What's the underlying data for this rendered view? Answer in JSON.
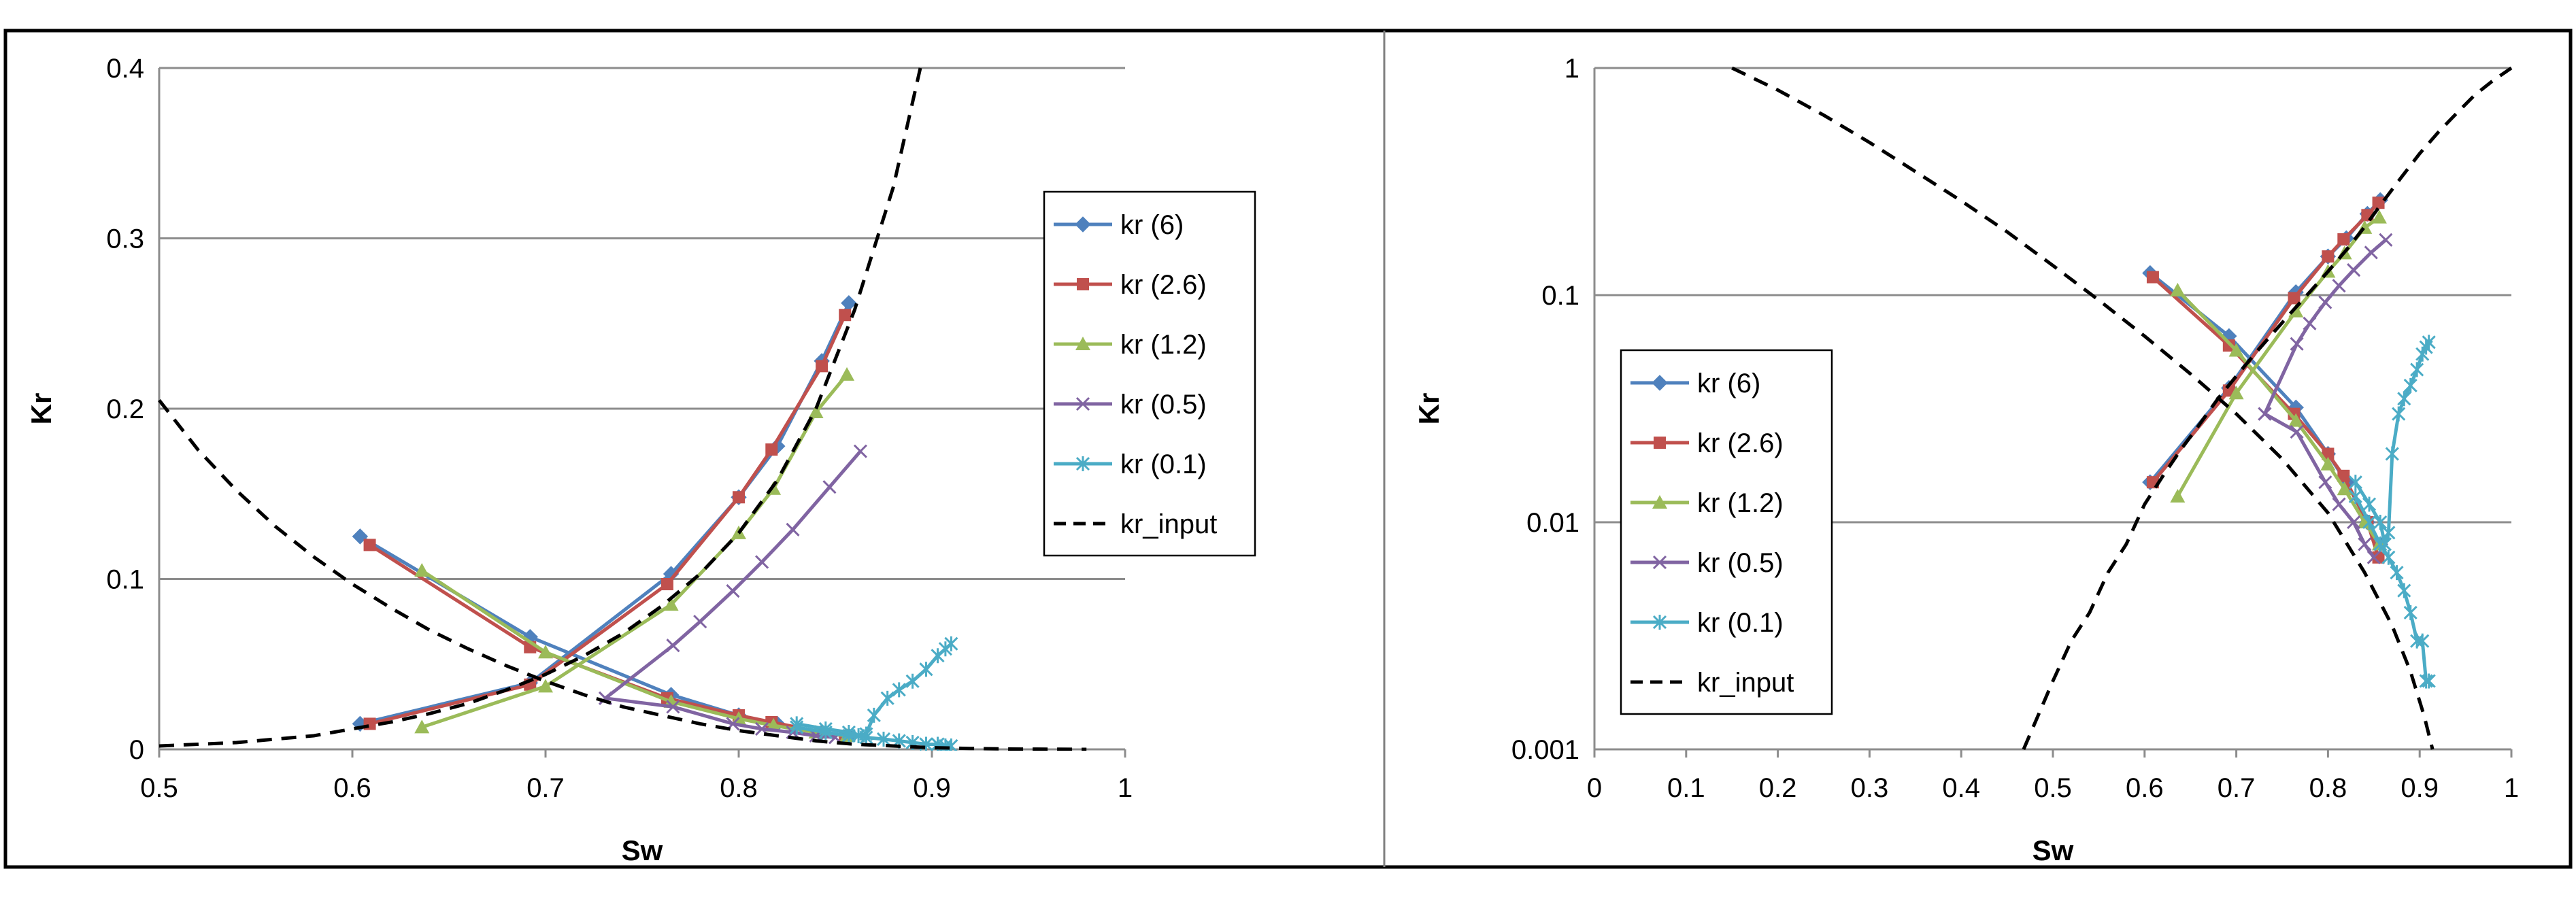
{
  "chart_data": [
    {
      "type": "line",
      "title": "",
      "xlabel": "Sw",
      "ylabel": "Kr",
      "xlim": [
        0.5,
        1
      ],
      "ylim": [
        0,
        0.4
      ],
      "yscale": "linear",
      "grid": true,
      "legend_position": "right",
      "xticks": [
        "0.5",
        "0.6",
        "0.7",
        "0.8",
        "0.9",
        "1"
      ],
      "yticks": [
        "0",
        "0.1",
        "0.2",
        "0.3",
        "0.4"
      ],
      "series": [
        {
          "name": "kr (6)",
          "color": "#4f81bd",
          "marker": "diamond",
          "segments": [
            {
              "x": [
                0.604,
                0.692,
                0.765,
                0.8,
                0.82,
                0.843,
                0.857
              ],
              "y": [
                0.015,
                0.039,
                0.103,
                0.148,
                0.178,
                0.228,
                0.262
              ]
            },
            {
              "x": [
                0.604,
                0.692,
                0.765,
                0.8,
                0.82,
                0.843,
                0.857
              ],
              "y": [
                0.125,
                0.066,
                0.032,
                0.02,
                0.015,
                0.01,
                0.008
              ]
            }
          ]
        },
        {
          "name": "kr (2.6)",
          "color": "#c0504d",
          "marker": "square",
          "segments": [
            {
              "x": [
                0.609,
                0.692,
                0.763,
                0.8,
                0.817,
                0.843,
                0.855
              ],
              "y": [
                0.015,
                0.038,
                0.097,
                0.148,
                0.176,
                0.225,
                0.255
              ]
            },
            {
              "x": [
                0.609,
                0.692,
                0.763,
                0.8,
                0.817,
                0.843,
                0.855
              ],
              "y": [
                0.12,
                0.06,
                0.03,
                0.02,
                0.016,
                0.01,
                0.008
              ]
            }
          ]
        },
        {
          "name": "kr (1.2)",
          "color": "#9bbb59",
          "marker": "triangle",
          "segments": [
            {
              "x": [
                0.636,
                0.7,
                0.765,
                0.8,
                0.818,
                0.84,
                0.856
              ],
              "y": [
                0.013,
                0.037,
                0.085,
                0.127,
                0.153,
                0.198,
                0.22
              ]
            },
            {
              "x": [
                0.636,
                0.7,
                0.765,
                0.8,
                0.818,
                0.84,
                0.856
              ],
              "y": [
                0.105,
                0.057,
                0.028,
                0.018,
                0.014,
                0.01,
                0.008
              ]
            }
          ]
        },
        {
          "name": "kr (0.5)",
          "color": "#8064a2",
          "marker": "x",
          "segments": [
            {
              "x": [
                0.731,
                0.766,
                0.78,
                0.797,
                0.812,
                0.828,
                0.847,
                0.863
              ],
              "y": [
                0.03,
                0.061,
                0.075,
                0.093,
                0.11,
                0.129,
                0.154,
                0.175
              ]
            },
            {
              "x": [
                0.731,
                0.766,
                0.797,
                0.812,
                0.828,
                0.84,
                0.85
              ],
              "y": [
                0.03,
                0.025,
                0.015,
                0.012,
                0.01,
                0.008,
                0.007
              ]
            }
          ]
        },
        {
          "name": "kr (0.1)",
          "color": "#4bacc6",
          "marker": "asterisk",
          "segments": [
            {
              "x": [
                0.83,
                0.845,
                0.857,
                0.862,
                0.866,
                0.87,
                0.877,
                0.883,
                0.89,
                0.897,
                0.903,
                0.907,
                0.91
              ],
              "y": [
                0.015,
                0.012,
                0.01,
                0.008,
                0.009,
                0.02,
                0.03,
                0.035,
                0.04,
                0.047,
                0.055,
                0.059,
                0.062
              ]
            },
            {
              "x": [
                0.83,
                0.845,
                0.857,
                0.866,
                0.875,
                0.883,
                0.89,
                0.897,
                0.903,
                0.907,
                0.91
              ],
              "y": [
                0.013,
                0.01,
                0.008,
                0.007,
                0.006,
                0.005,
                0.004,
                0.003,
                0.003,
                0.002,
                0.002
              ]
            }
          ]
        },
        {
          "name": "kr_input",
          "color": "#000000",
          "marker": "none",
          "dashed": true,
          "segments": [
            {
              "x": [
                0.5,
                0.52,
                0.54,
                0.56,
                0.58,
                0.6,
                0.62,
                0.64,
                0.66,
                0.68,
                0.7,
                0.72,
                0.74,
                0.76,
                0.78,
                0.8,
                0.82,
                0.84,
                0.86,
                0.88,
                0.894
              ],
              "y": [
                0.002,
                0.003,
                0.004,
                0.006,
                0.008,
                0.012,
                0.016,
                0.021,
                0.027,
                0.035,
                0.044,
                0.055,
                0.068,
                0.084,
                0.103,
                0.127,
                0.158,
                0.2,
                0.258,
                0.33,
                0.4
              ]
            },
            {
              "x": [
                0.5,
                0.52,
                0.54,
                0.56,
                0.58,
                0.6,
                0.62,
                0.64,
                0.66,
                0.68,
                0.7,
                0.72,
                0.74,
                0.76,
                0.78,
                0.8,
                0.82,
                0.84,
                0.86,
                0.88,
                0.9,
                0.92,
                0.94,
                0.96,
                0.98
              ],
              "y": [
                0.205,
                0.176,
                0.152,
                0.131,
                0.113,
                0.097,
                0.083,
                0.07,
                0.059,
                0.049,
                0.04,
                0.032,
                0.025,
                0.02,
                0.015,
                0.011,
                0.008,
                0.005,
                0.003,
                0.002,
                0.001,
                0.0005,
                0.0002,
                0.0001,
                0.0
              ]
            }
          ]
        }
      ]
    },
    {
      "type": "line",
      "title": "",
      "xlabel": "Sw",
      "ylabel": "Kr",
      "xlim": [
        0,
        1
      ],
      "ylim": [
        0.001,
        1
      ],
      "yscale": "log",
      "grid": true,
      "legend_position": "left",
      "xticks": [
        "0",
        "0.1",
        "0.2",
        "0.3",
        "0.4",
        "0.5",
        "0.6",
        "0.7",
        "0.8",
        "0.9",
        "1"
      ],
      "yticks": [
        "0.001",
        "0.01",
        "0.1",
        "1"
      ],
      "series": [
        {
          "name": "kr (6)",
          "color": "#4f81bd",
          "marker": "diamond",
          "segments": [
            {
              "x": [
                0.606,
                0.692,
                0.765,
                0.8,
                0.82,
                0.843,
                0.857
              ],
              "y": [
                0.015,
                0.039,
                0.103,
                0.148,
                0.178,
                0.228,
                0.262
              ]
            },
            {
              "x": [
                0.606,
                0.692,
                0.765,
                0.8,
                0.82,
                0.843,
                0.857
              ],
              "y": [
                0.125,
                0.066,
                0.032,
                0.02,
                0.015,
                0.01,
                0.008
              ]
            }
          ]
        },
        {
          "name": "kr (2.6)",
          "color": "#c0504d",
          "marker": "square",
          "segments": [
            {
              "x": [
                0.609,
                0.692,
                0.763,
                0.8,
                0.817,
                0.843,
                0.855
              ],
              "y": [
                0.015,
                0.038,
                0.097,
                0.148,
                0.176,
                0.225,
                0.255
              ]
            },
            {
              "x": [
                0.609,
                0.692,
                0.763,
                0.8,
                0.817,
                0.843,
                0.855
              ],
              "y": [
                0.12,
                0.06,
                0.03,
                0.02,
                0.016,
                0.01,
                0.007
              ]
            }
          ]
        },
        {
          "name": "kr (1.2)",
          "color": "#9bbb59",
          "marker": "triangle",
          "segments": [
            {
              "x": [
                0.636,
                0.7,
                0.765,
                0.8,
                0.818,
                0.84,
                0.856
              ],
              "y": [
                0.013,
                0.037,
                0.085,
                0.127,
                0.153,
                0.198,
                0.22
              ]
            },
            {
              "x": [
                0.636,
                0.7,
                0.765,
                0.8,
                0.818,
                0.84,
                0.856
              ],
              "y": [
                0.105,
                0.057,
                0.028,
                0.018,
                0.014,
                0.01,
                0.008
              ]
            }
          ]
        },
        {
          "name": "kr (0.5)",
          "color": "#8064a2",
          "marker": "x",
          "segments": [
            {
              "x": [
                0.731,
                0.766,
                0.78,
                0.797,
                0.812,
                0.828,
                0.847,
                0.863
              ],
              "y": [
                0.03,
                0.061,
                0.075,
                0.093,
                0.11,
                0.129,
                0.154,
                0.175
              ]
            },
            {
              "x": [
                0.731,
                0.766,
                0.797,
                0.812,
                0.828,
                0.84,
                0.85
              ],
              "y": [
                0.03,
                0.025,
                0.015,
                0.012,
                0.01,
                0.008,
                0.007
              ]
            }
          ]
        },
        {
          "name": "kr (0.1)",
          "color": "#4bacc6",
          "marker": "asterisk",
          "segments": [
            {
              "x": [
                0.83,
                0.845,
                0.857,
                0.862,
                0.866,
                0.87,
                0.877,
                0.883,
                0.89,
                0.897,
                0.903,
                0.907,
                0.91
              ],
              "y": [
                0.015,
                0.012,
                0.01,
                0.008,
                0.009,
                0.02,
                0.03,
                0.035,
                0.04,
                0.047,
                0.055,
                0.059,
                0.062
              ]
            },
            {
              "x": [
                0.83,
                0.845,
                0.857,
                0.866,
                0.875,
                0.883,
                0.89,
                0.897,
                0.903,
                0.907,
                0.91
              ],
              "y": [
                0.013,
                0.01,
                0.008,
                0.007,
                0.006,
                0.005,
                0.004,
                0.003,
                0.003,
                0.002,
                0.002
              ]
            }
          ]
        },
        {
          "name": "kr_input",
          "color": "#000000",
          "marker": "none",
          "dashed": true,
          "segments": [
            {
              "x": [
                0.468,
                0.5,
                0.52,
                0.54,
                0.56,
                0.58,
                0.6,
                0.62,
                0.64,
                0.66,
                0.68,
                0.7,
                0.72,
                0.74,
                0.76,
                0.78,
                0.8,
                0.82,
                0.84,
                0.86,
                0.88,
                0.9,
                0.92,
                0.94,
                0.96,
                0.98,
                1.0
              ],
              "y": [
                0.001,
                0.002,
                0.003,
                0.004,
                0.006,
                0.008,
                0.012,
                0.016,
                0.021,
                0.027,
                0.035,
                0.044,
                0.055,
                0.068,
                0.084,
                0.103,
                0.127,
                0.158,
                0.2,
                0.258,
                0.33,
                0.42,
                0.52,
                0.63,
                0.76,
                0.88,
                1.0
              ]
            },
            {
              "x": [
                0.15,
                0.2,
                0.25,
                0.3,
                0.35,
                0.4,
                0.45,
                0.5,
                0.55,
                0.6,
                0.65,
                0.7,
                0.75,
                0.8,
                0.84,
                0.87,
                0.89,
                0.905,
                0.914
              ],
              "y": [
                1.0,
                0.8,
                0.62,
                0.47,
                0.35,
                0.26,
                0.19,
                0.135,
                0.095,
                0.066,
                0.045,
                0.03,
                0.019,
                0.011,
                0.006,
                0.0035,
                0.0022,
                0.0014,
                0.001
              ]
            }
          ]
        }
      ]
    }
  ]
}
